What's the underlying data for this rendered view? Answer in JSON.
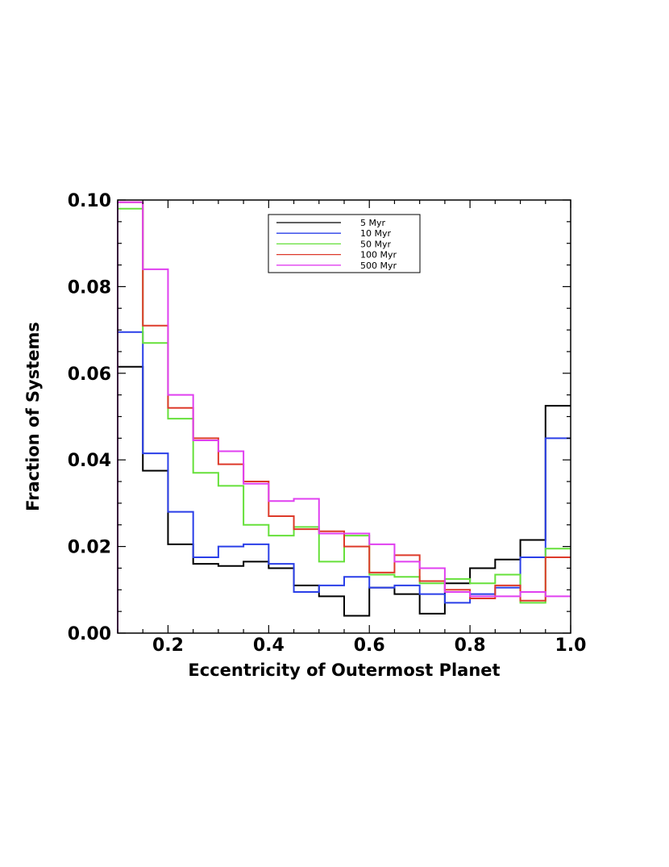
{
  "chart_data": {
    "type": "step-histogram",
    "xlabel": "Eccentricity of Outermost Planet",
    "ylabel": "Fraction of Systems",
    "xlim": [
      0.1,
      1.0
    ],
    "ylim": [
      0.0,
      0.1
    ],
    "x_ticks": [
      "0.2",
      "0.4",
      "0.6",
      "0.8",
      "1.0"
    ],
    "y_ticks": [
      "0.00",
      "0.02",
      "0.04",
      "0.06",
      "0.08",
      "0.10"
    ],
    "bin_edges": [
      0.1,
      0.15,
      0.2,
      0.25,
      0.3,
      0.35,
      0.4,
      0.45,
      0.5,
      0.55,
      0.6,
      0.65,
      0.7,
      0.75,
      0.8,
      0.85,
      0.9,
      0.95,
      1.0
    ],
    "legend_position": "top-center",
    "series": [
      {
        "name": "5 Myr",
        "color": "#000000",
        "values": [
          0.0615,
          0.0375,
          0.0205,
          0.016,
          0.0155,
          0.0165,
          0.015,
          0.011,
          0.0085,
          0.004,
          0.0105,
          0.009,
          0.0045,
          0.0115,
          0.015,
          0.017,
          0.0215,
          0.0525
        ]
      },
      {
        "name": "10 Myr",
        "color": "#2a3fe8",
        "values": [
          0.0695,
          0.0415,
          0.028,
          0.0175,
          0.02,
          0.0205,
          0.016,
          0.0095,
          0.011,
          0.013,
          0.0105,
          0.011,
          0.009,
          0.007,
          0.009,
          0.0105,
          0.0175,
          0.045
        ]
      },
      {
        "name": "50 Myr",
        "color": "#66e03a",
        "values": [
          0.098,
          0.067,
          0.0495,
          0.037,
          0.034,
          0.025,
          0.0225,
          0.0245,
          0.0165,
          0.0225,
          0.0135,
          0.013,
          0.0115,
          0.0125,
          0.0115,
          0.0135,
          0.007,
          0.0195
        ]
      },
      {
        "name": "100 Myr",
        "color": "#dd3a2a",
        "values": [
          0.0995,
          0.071,
          0.052,
          0.045,
          0.039,
          0.035,
          0.027,
          0.024,
          0.0235,
          0.02,
          0.014,
          0.018,
          0.012,
          0.01,
          0.008,
          0.011,
          0.0075,
          0.0175
        ]
      },
      {
        "name": "500 Myr",
        "color": "#e040f0",
        "values": [
          0.0995,
          0.084,
          0.055,
          0.0445,
          0.042,
          0.0345,
          0.0305,
          0.031,
          0.023,
          0.023,
          0.0205,
          0.0165,
          0.015,
          0.0095,
          0.0085,
          0.0085,
          0.0095,
          0.0085
        ]
      }
    ]
  }
}
